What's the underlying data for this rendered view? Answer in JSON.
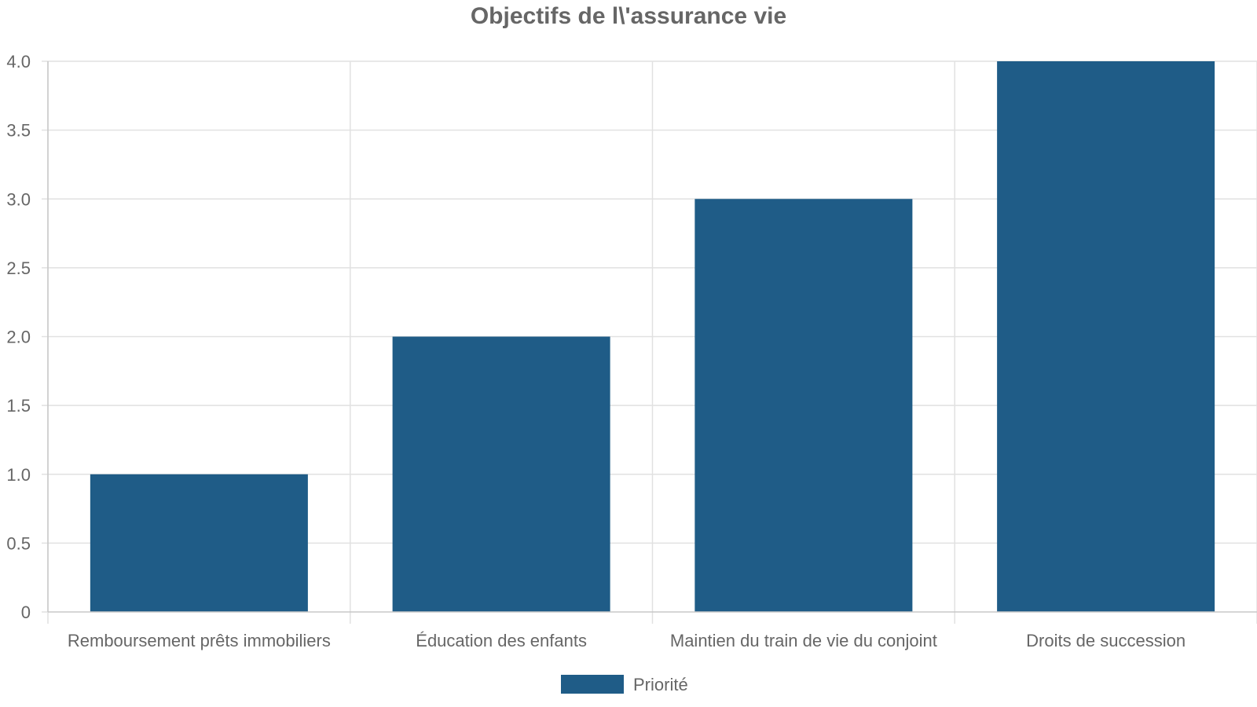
{
  "chart_data": {
    "type": "bar",
    "title": "Objectifs de l\\'assurance vie",
    "categories": [
      "Remboursement prêts immobiliers",
      "Éducation des enfants",
      "Maintien du train de vie du conjoint",
      "Droits de succession"
    ],
    "series": [
      {
        "name": "Priorité",
        "color": "#1f5c87",
        "values": [
          1,
          2,
          3,
          4
        ]
      }
    ],
    "xlabel": "",
    "ylabel": "",
    "ylim": [
      0,
      4
    ],
    "yticks": [
      "0",
      "0.5",
      "1.0",
      "1.5",
      "2.0",
      "2.5",
      "3.0",
      "3.5",
      "4.0"
    ],
    "grid": true,
    "legend_position": "bottom-center"
  }
}
